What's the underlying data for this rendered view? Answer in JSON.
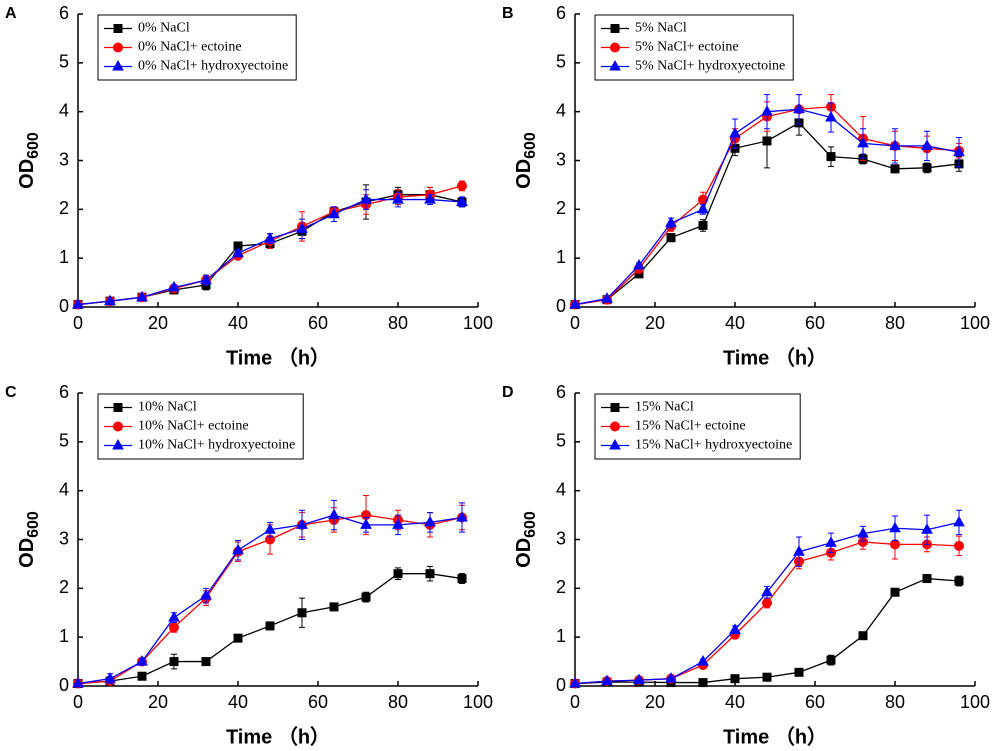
{
  "chart_data": [
    {
      "type": "line",
      "panel_label": "A",
      "xlabel": "Time （h）",
      "ylabel": "OD",
      "ylabel_subscript": "600",
      "x": [
        0,
        8,
        16,
        24,
        32,
        40,
        48,
        56,
        64,
        72,
        80,
        88,
        96
      ],
      "xlim": [
        0,
        100
      ],
      "xticks": [
        0,
        20,
        40,
        60,
        80,
        100
      ],
      "ylim": [
        0,
        6
      ],
      "yticks": [
        0,
        1,
        2,
        3,
        4,
        5,
        6
      ],
      "legend": "upper left",
      "series": [
        {
          "name": "0% NaCl",
          "color": "#000000",
          "marker": "square",
          "values": [
            0.05,
            0.12,
            0.2,
            0.35,
            0.45,
            1.25,
            1.3,
            1.55,
            1.95,
            2.15,
            2.3,
            2.3,
            2.15
          ],
          "errors": [
            0.02,
            0.02,
            0.03,
            0.05,
            0.1,
            0.05,
            0.1,
            0.15,
            0.1,
            0.35,
            0.15,
            0.15,
            0.1
          ]
        },
        {
          "name": "0% NaCl+ ectoine",
          "color": "#ff0000",
          "marker": "circle",
          "values": [
            0.05,
            0.12,
            0.2,
            0.38,
            0.55,
            1.05,
            1.35,
            1.65,
            1.95,
            2.1,
            2.25,
            2.3,
            2.48
          ],
          "errors": [
            0.02,
            0.02,
            0.03,
            0.05,
            0.1,
            0.05,
            0.15,
            0.3,
            0.1,
            0.2,
            0.15,
            0.15,
            0.1
          ]
        },
        {
          "name": "0% NaCl+ hydroxyectoine",
          "color": "#0000ff",
          "marker": "triangle",
          "values": [
            0.05,
            0.12,
            0.2,
            0.4,
            0.55,
            1.1,
            1.4,
            1.6,
            1.9,
            2.2,
            2.2,
            2.2,
            2.15
          ],
          "errors": [
            0.02,
            0.02,
            0.03,
            0.05,
            0.1,
            0.05,
            0.1,
            0.2,
            0.15,
            0.2,
            0.15,
            0.1,
            0.1
          ]
        }
      ]
    },
    {
      "type": "line",
      "panel_label": "B",
      "xlabel": "Time （h）",
      "ylabel": "OD",
      "ylabel_subscript": "600",
      "x": [
        0,
        8,
        16,
        24,
        32,
        40,
        48,
        56,
        64,
        72,
        80,
        88,
        96
      ],
      "xlim": [
        0,
        100
      ],
      "xticks": [
        0,
        20,
        40,
        60,
        80,
        100
      ],
      "ylim": [
        0,
        6
      ],
      "yticks": [
        0,
        1,
        2,
        3,
        4,
        5,
        6
      ],
      "legend": "upper left",
      "series": [
        {
          "name": "5% NaCl",
          "color": "#000000",
          "marker": "square",
          "values": [
            0.05,
            0.15,
            0.68,
            1.42,
            1.67,
            3.25,
            3.4,
            3.77,
            3.08,
            3.03,
            2.83,
            2.85,
            2.93
          ],
          "errors": [
            0.02,
            0.03,
            0.08,
            0.08,
            0.12,
            0.15,
            0.55,
            0.25,
            0.2,
            0.1,
            0.08,
            0.1,
            0.15
          ]
        },
        {
          "name": "5% NaCl+ ectoine",
          "color": "#ff0000",
          "marker": "circle",
          "values": [
            0.05,
            0.15,
            0.78,
            1.65,
            2.2,
            3.45,
            3.9,
            4.05,
            4.1,
            3.45,
            3.3,
            3.25,
            3.2
          ],
          "errors": [
            0.02,
            0.03,
            0.05,
            0.1,
            0.15,
            0.2,
            0.3,
            0.3,
            0.25,
            0.45,
            0.3,
            0.25,
            0.15
          ]
        },
        {
          "name": "5% NaCl+ hydroxyectoine",
          "color": "#0000ff",
          "marker": "triangle",
          "values": [
            0.05,
            0.17,
            0.85,
            1.72,
            2.0,
            3.55,
            4.0,
            4.05,
            3.88,
            3.35,
            3.3,
            3.3,
            3.17
          ],
          "errors": [
            0.02,
            0.03,
            0.05,
            0.1,
            0.1,
            0.3,
            0.35,
            0.3,
            0.3,
            0.3,
            0.35,
            0.3,
            0.3
          ]
        }
      ]
    },
    {
      "type": "line",
      "panel_label": "C",
      "xlabel": "Time （h）",
      "ylabel": "OD",
      "ylabel_subscript": "600",
      "x": [
        0,
        8,
        16,
        24,
        32,
        40,
        48,
        56,
        64,
        72,
        80,
        88,
        96
      ],
      "xlim": [
        0,
        100
      ],
      "xticks": [
        0,
        20,
        40,
        60,
        80,
        100
      ],
      "ylim": [
        0,
        6
      ],
      "yticks": [
        0,
        1,
        2,
        3,
        4,
        5,
        6
      ],
      "legend": "upper left",
      "series": [
        {
          "name": "10% NaCl",
          "color": "#000000",
          "marker": "square",
          "values": [
            0.05,
            0.1,
            0.2,
            0.5,
            0.5,
            0.98,
            1.23,
            1.5,
            1.62,
            1.82,
            2.3,
            2.3,
            2.2
          ],
          "errors": [
            0.02,
            0.03,
            0.05,
            0.15,
            0.05,
            0.05,
            0.05,
            0.3,
            0.08,
            0.1,
            0.12,
            0.15,
            0.1
          ]
        },
        {
          "name": "10% NaCl+ ectoine",
          "color": "#ff0000",
          "marker": "circle",
          "values": [
            0.05,
            0.1,
            0.5,
            1.2,
            1.8,
            2.75,
            3.0,
            3.3,
            3.4,
            3.5,
            3.4,
            3.3,
            3.45
          ],
          "errors": [
            0.02,
            0.05,
            0.05,
            0.1,
            0.15,
            0.2,
            0.3,
            0.25,
            0.25,
            0.4,
            0.2,
            0.25,
            0.25
          ]
        },
        {
          "name": "10% NaCl+ hydroxyectoine",
          "color": "#0000ff",
          "marker": "triangle",
          "values": [
            0.05,
            0.15,
            0.5,
            1.4,
            1.85,
            2.78,
            3.2,
            3.3,
            3.5,
            3.3,
            3.3,
            3.35,
            3.45
          ],
          "errors": [
            0.02,
            0.1,
            0.05,
            0.1,
            0.15,
            0.2,
            0.15,
            0.3,
            0.3,
            0.15,
            0.2,
            0.2,
            0.3
          ]
        }
      ]
    },
    {
      "type": "line",
      "panel_label": "D",
      "xlabel": "Time （h）",
      "ylabel": "OD",
      "ylabel_subscript": "600",
      "x": [
        0,
        8,
        16,
        24,
        32,
        40,
        48,
        56,
        64,
        72,
        80,
        88,
        96
      ],
      "xlim": [
        0,
        100
      ],
      "xticks": [
        0,
        20,
        40,
        60,
        80,
        100
      ],
      "ylim": [
        0,
        6
      ],
      "yticks": [
        0,
        1,
        2,
        3,
        4,
        5,
        6
      ],
      "legend": "upper left",
      "series": [
        {
          "name": "15% NaCl",
          "color": "#000000",
          "marker": "square",
          "values": [
            0.05,
            0.08,
            0.08,
            0.07,
            0.07,
            0.15,
            0.18,
            0.28,
            0.53,
            1.03,
            1.92,
            2.2,
            2.15
          ],
          "errors": [
            0.02,
            0.02,
            0.02,
            0.02,
            0.02,
            0.03,
            0.03,
            0.03,
            0.1,
            0.05,
            0.05,
            0.08,
            0.1
          ]
        },
        {
          "name": "15% NaCl+ ectoine",
          "color": "#ff0000",
          "marker": "circle",
          "values": [
            0.05,
            0.1,
            0.12,
            0.15,
            0.43,
            1.05,
            1.7,
            2.55,
            2.73,
            2.95,
            2.9,
            2.9,
            2.87
          ],
          "errors": [
            0.02,
            0.02,
            0.02,
            0.03,
            0.05,
            0.08,
            0.1,
            0.15,
            0.15,
            0.15,
            0.3,
            0.15,
            0.2
          ]
        },
        {
          "name": "15% NaCl+ hydroxyectoine",
          "color": "#0000ff",
          "marker": "triangle",
          "values": [
            0.05,
            0.1,
            0.12,
            0.15,
            0.5,
            1.15,
            1.92,
            2.75,
            2.93,
            3.12,
            3.23,
            3.2,
            3.35
          ],
          "errors": [
            0.02,
            0.02,
            0.02,
            0.03,
            0.05,
            0.08,
            0.12,
            0.3,
            0.2,
            0.15,
            0.25,
            0.3,
            0.25
          ]
        }
      ]
    }
  ]
}
